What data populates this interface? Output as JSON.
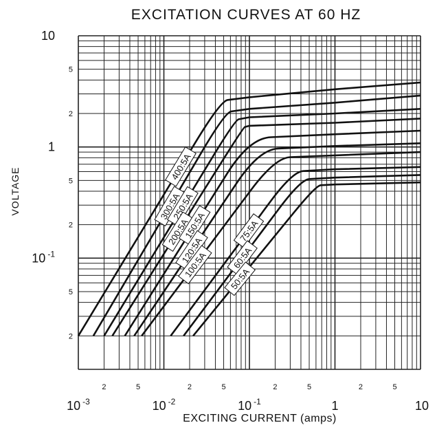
{
  "chart_data": {
    "type": "line",
    "title": "EXCITATION CURVES AT 60 HZ",
    "xlabel": "EXCITING CURRENT (amps)",
    "ylabel": "VOLTAGE",
    "x_scale": "log",
    "y_scale": "log",
    "xlim": [
      0.001,
      10
    ],
    "ylim": [
      0.01,
      10
    ],
    "grid": true,
    "x_major_ticks": [
      {
        "value": 0.001,
        "mantissa": "10",
        "exponent": "-3"
      },
      {
        "value": 0.01,
        "mantissa": "10",
        "exponent": "-2"
      },
      {
        "value": 0.1,
        "mantissa": "10",
        "exponent": "-1"
      },
      {
        "value": 1,
        "mantissa": "1",
        "exponent": ""
      },
      {
        "value": 10,
        "mantissa": "10",
        "exponent": ""
      }
    ],
    "y_major_ticks": [
      {
        "value": 10,
        "mantissa": "10",
        "exponent": ""
      },
      {
        "value": 1,
        "mantissa": "1",
        "exponent": ""
      },
      {
        "value": 0.1,
        "mantissa": "10",
        "exponent": "-1"
      }
    ],
    "minor_tick_labels": [
      "2",
      "5"
    ],
    "series": [
      {
        "name": "400:5A",
        "points": [
          [
            0.001,
            0.02
          ],
          [
            0.046,
            2.6
          ],
          [
            0.1,
            2.8
          ],
          [
            1,
            3.3
          ],
          [
            10,
            3.8
          ]
        ]
      },
      {
        "name": "300:5A",
        "points": [
          [
            0.0015,
            0.02
          ],
          [
            0.052,
            2.05
          ],
          [
            0.1,
            2.2
          ],
          [
            1,
            2.5
          ],
          [
            10,
            2.9
          ]
        ]
      },
      {
        "name": "250:5A",
        "points": [
          [
            0.002,
            0.02
          ],
          [
            0.068,
            1.75
          ],
          [
            0.1,
            1.85
          ],
          [
            1,
            2.0
          ],
          [
            10,
            2.2
          ]
        ]
      },
      {
        "name": "200:5A",
        "points": [
          [
            0.0025,
            0.02
          ],
          [
            0.085,
            1.5
          ],
          [
            0.1,
            1.55
          ],
          [
            1,
            1.65
          ],
          [
            10,
            1.8
          ]
        ]
      },
      {
        "name": "150:5A",
        "points": [
          [
            0.0035,
            0.02
          ],
          [
            0.1,
            1.2
          ],
          [
            1,
            1.3
          ],
          [
            10,
            1.4
          ]
        ]
      },
      {
        "name": "120:5A",
        "points": [
          [
            0.0045,
            0.02
          ],
          [
            0.13,
            0.95
          ],
          [
            1,
            1.02
          ],
          [
            10,
            1.08
          ]
        ]
      },
      {
        "name": "100:5A",
        "points": [
          [
            0.0055,
            0.02
          ],
          [
            0.2,
            0.8
          ],
          [
            1,
            0.84
          ],
          [
            10,
            0.9
          ]
        ]
      },
      {
        "name": "75:5A",
        "points": [
          [
            0.012,
            0.02
          ],
          [
            0.32,
            0.6
          ],
          [
            1,
            0.63
          ],
          [
            10,
            0.66
          ]
        ]
      },
      {
        "name": "60:5A",
        "points": [
          [
            0.017,
            0.02
          ],
          [
            0.4,
            0.51
          ],
          [
            1,
            0.53
          ],
          [
            10,
            0.56
          ]
        ]
      },
      {
        "name": "50:5A",
        "points": [
          [
            0.022,
            0.02
          ],
          [
            0.6,
            0.45
          ],
          [
            1,
            0.46
          ],
          [
            10,
            0.48
          ]
        ]
      }
    ]
  }
}
